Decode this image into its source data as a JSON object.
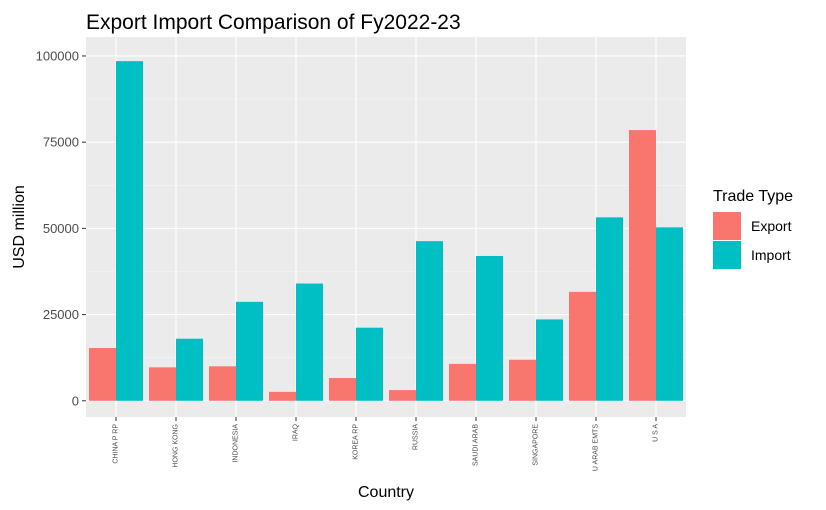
{
  "chart_data": {
    "type": "bar",
    "title": "Export Import Comparison of Fy2022-23",
    "xlabel": "Country",
    "ylabel": "USD million",
    "categories": [
      "CHINA P RP",
      "HONG KONG",
      "INDONESIA",
      "IRAQ",
      "KOREA RP",
      "RUSSIA",
      "SAUDI ARAB",
      "SINGAPORE",
      "U ARAB EMTS",
      "U S A"
    ],
    "series": [
      {
        "name": "Export",
        "color": "#F8766D",
        "values": [
          15300,
          9700,
          10000,
          2600,
          6600,
          3100,
          10700,
          11900,
          31600,
          78500
        ]
      },
      {
        "name": "Import",
        "color": "#00BFC4",
        "values": [
          98500,
          18000,
          28700,
          34000,
          21200,
          46300,
          42000,
          23600,
          53200,
          50300
        ]
      }
    ],
    "ylim": [
      -4700,
      105500
    ],
    "yticks": [
      0,
      25000,
      50000,
      75000,
      100000
    ],
    "ytick_labels": [
      "0",
      "25000",
      "50000",
      "75000",
      "100000"
    ],
    "grid": true,
    "legend": {
      "title": "Trade Type",
      "position": "right"
    },
    "colors": {
      "panel": "#EBEBEB",
      "grid_major": "#FFFFFF",
      "grid_minor": "#F5F5F5"
    }
  }
}
